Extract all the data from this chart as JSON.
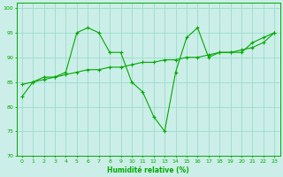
{
  "xlabel": "Humidité relative (%)",
  "bg_color": "#cceee8",
  "grid_color": "#99ddcc",
  "line_color": "#00aa00",
  "xlim": [
    -0.5,
    23.5
  ],
  "ylim": [
    70,
    101
  ],
  "yticks": [
    70,
    75,
    80,
    85,
    90,
    95,
    100
  ],
  "xticks": [
    0,
    1,
    2,
    3,
    4,
    5,
    6,
    7,
    8,
    9,
    10,
    11,
    12,
    13,
    14,
    15,
    16,
    17,
    18,
    19,
    20,
    21,
    22,
    23
  ],
  "series1_x": [
    0,
    1,
    2,
    3,
    4,
    5,
    6,
    7,
    8,
    9,
    10,
    11,
    12,
    13,
    14,
    15,
    16,
    17,
    18,
    19,
    20,
    21,
    22,
    23
  ],
  "series1_y": [
    82,
    85,
    86,
    86,
    87,
    95,
    96,
    95,
    91,
    91,
    85,
    83,
    78,
    75,
    87,
    94,
    96,
    90,
    91,
    91,
    91,
    93,
    94,
    95
  ],
  "series2_x": [
    0,
    1,
    2,
    3,
    4,
    5,
    6,
    7,
    8,
    9,
    10,
    11,
    12,
    13,
    14,
    15,
    16,
    17,
    18,
    19,
    20,
    21,
    22,
    23
  ],
  "series2_y": [
    84.5,
    85.0,
    85.5,
    86.0,
    86.5,
    87.0,
    87.5,
    87.5,
    88.0,
    88.0,
    88.5,
    89.0,
    89.0,
    89.5,
    89.5,
    90.0,
    90.0,
    90.5,
    91.0,
    91.0,
    91.5,
    92.0,
    93.0,
    95.0
  ]
}
